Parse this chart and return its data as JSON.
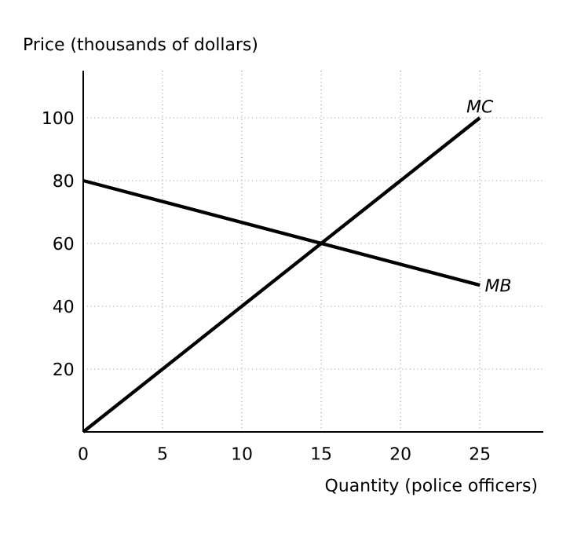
{
  "chart_data": {
    "type": "line",
    "xlabel": "Quantity (police officers)",
    "ylabel": "Price (thousands of dollars)",
    "xlim": [
      0,
      29
    ],
    "ylim": [
      0,
      115
    ],
    "xticks": [
      0,
      5,
      10,
      15,
      20,
      25
    ],
    "yticks": [
      20,
      40,
      60,
      80,
      100
    ],
    "grid": true,
    "legend": false,
    "x": [
      0,
      25
    ],
    "series": [
      {
        "name": "MC",
        "color": "#000000",
        "values": [
          0,
          100
        ]
      },
      {
        "name": "MB",
        "color": "#000000",
        "values": [
          80,
          46.7
        ]
      }
    ]
  }
}
